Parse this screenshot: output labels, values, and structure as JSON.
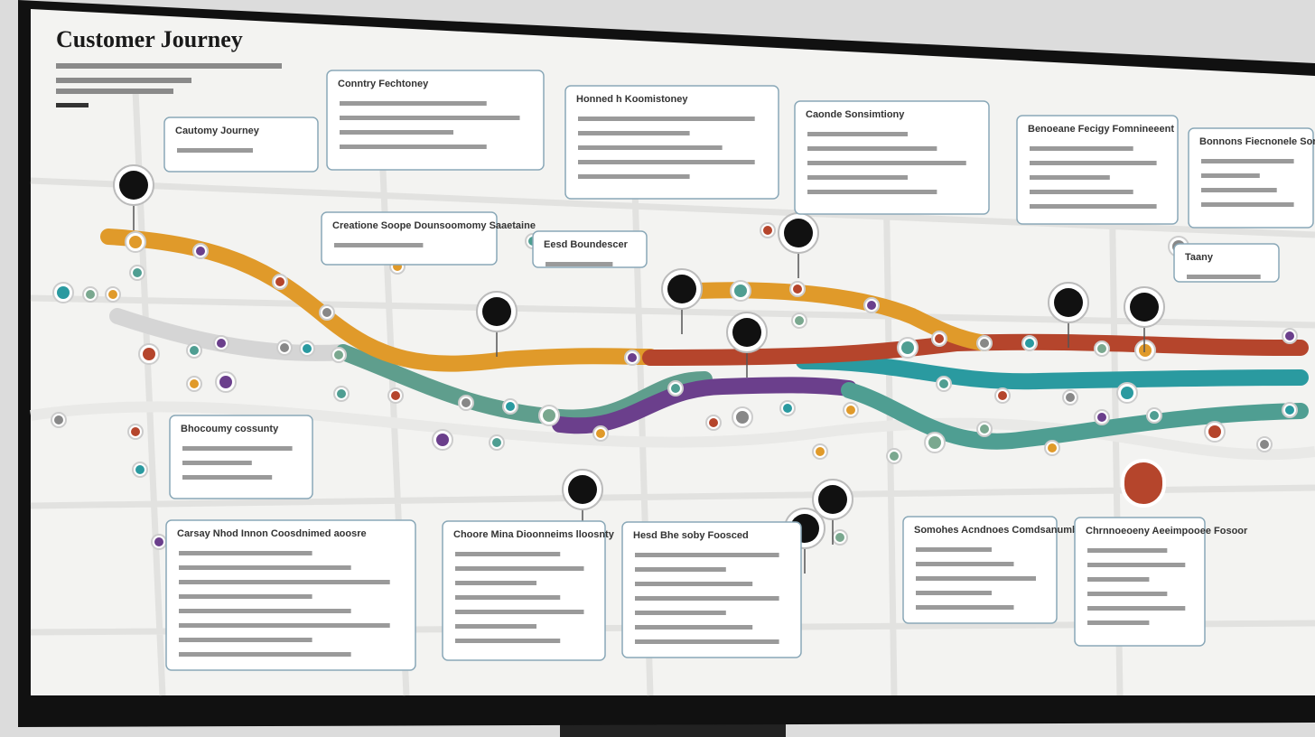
{
  "header": {
    "title": "Customer Journey"
  },
  "cards": [
    {
      "title": "Cautomy Journey"
    },
    {
      "title": "Conntry Fechtoney"
    },
    {
      "title": "Honned h Koomistoney"
    },
    {
      "title": "Caonde Sonsimtiony"
    },
    {
      "title": "Benoeane Fecigy Fomnineeent"
    },
    {
      "title": "Bonnons Fiecnonele Sorhnyingle"
    },
    {
      "title": "Creatione Soope Dounsoomomy Saaetaine"
    },
    {
      "title": "Eesd Boundescer"
    },
    {
      "title": "Bhocoumy cossunty"
    },
    {
      "title": "Carsay Nhod Innon Coosdnimed aoosre"
    },
    {
      "title": "Choore Mina Dioonneims lloosnty"
    },
    {
      "title": "Hesd Bhe soby Foosced"
    },
    {
      "title": "Somohes Acndnoes Comdsanumbsoes Emmony Bsaoon"
    },
    {
      "title": "Chrnnoeoeny Aeeimpooee Fosoor"
    },
    {
      "title": "Taany"
    }
  ]
}
